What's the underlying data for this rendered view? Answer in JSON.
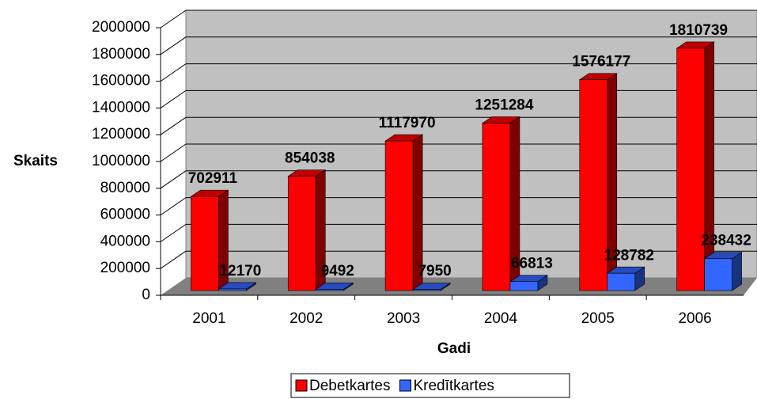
{
  "chart_data": {
    "type": "bar3d",
    "categories": [
      "2001",
      "2002",
      "2003",
      "2004",
      "2005",
      "2006"
    ],
    "series": [
      {
        "name": "Debetkartes",
        "color": "#ff0000",
        "values": [
          702911,
          854038,
          1117970,
          1251284,
          1576177,
          1810739
        ]
      },
      {
        "name": "Kredītkartes",
        "color": "#3366ff",
        "values": [
          12170,
          9492,
          7950,
          66813,
          128782,
          238432
        ]
      }
    ],
    "ylim": [
      0,
      2000000
    ],
    "yticks": [
      0,
      200000,
      400000,
      600000,
      800000,
      1000000,
      1200000,
      1400000,
      1600000,
      1800000,
      2000000
    ],
    "ylabel": "Skaits",
    "xlabel": "Gadi",
    "grid": true,
    "legend": "bottom"
  }
}
